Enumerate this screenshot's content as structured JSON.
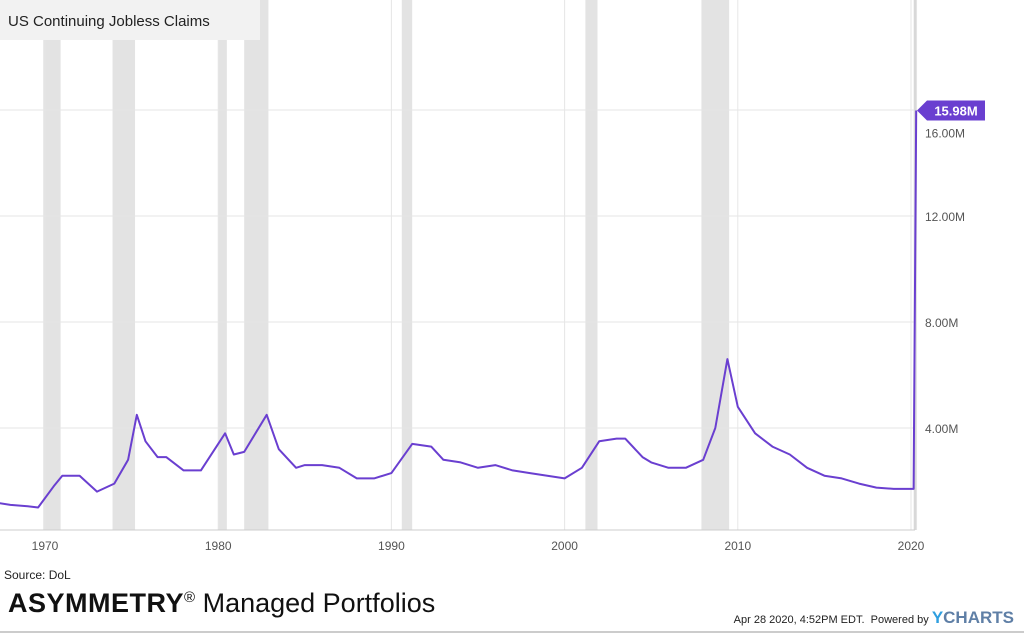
{
  "chart_data": {
    "type": "line",
    "title": "US Continuing Jobless Claims",
    "xlabel": "",
    "ylabel": "",
    "xlim": [
      1967,
      2020.5
    ],
    "ylim": [
      0,
      17.5
    ],
    "x_ticks": [
      1970,
      1980,
      1990,
      2000,
      2010,
      2020
    ],
    "x_tick_labels": [
      "1970",
      "1980",
      "1990",
      "2000",
      "2010",
      "2020"
    ],
    "y_ticks": [
      4,
      8,
      12,
      16
    ],
    "y_tick_labels": [
      "4.00M",
      "8.00M",
      "12.00M",
      "16.00M"
    ],
    "grid": true,
    "recessions": [
      [
        1969.9,
        1970.9
      ],
      [
        1973.9,
        1975.2
      ],
      [
        1980.0,
        1980.5
      ],
      [
        1981.5,
        1982.9
      ],
      [
        1990.6,
        1991.2
      ],
      [
        2001.2,
        2001.9
      ],
      [
        2007.9,
        2009.5
      ],
      [
        2020.15,
        2020.35
      ]
    ],
    "series": [
      {
        "name": "US Continuing Jobless Claims",
        "color": "#6a3fd0",
        "unit": "millions",
        "x": [
          1967,
          1968,
          1969,
          1969.6,
          1970.5,
          1971,
          1972,
          1973,
          1974,
          1974.8,
          1975.3,
          1975.8,
          1976.5,
          1977,
          1978,
          1979,
          1980.4,
          1980.9,
          1981.5,
          1982.8,
          1983.5,
          1984.5,
          1985,
          1986,
          1987,
          1988,
          1989,
          1990,
          1991.2,
          1992.3,
          1993,
          1994,
          1995,
          1996,
          1997,
          1998,
          1999,
          2000,
          2001,
          2002,
          2003,
          2003.5,
          2004.5,
          2005,
          2006,
          2007,
          2008,
          2008.7,
          2009.4,
          2010,
          2011,
          2012,
          2013,
          2014,
          2015,
          2016,
          2017,
          2018,
          2019,
          2020.15,
          2020.3
        ],
        "y": [
          1.2,
          1.1,
          1.05,
          1.0,
          1.8,
          2.2,
          2.2,
          1.6,
          1.9,
          2.8,
          4.5,
          3.5,
          2.9,
          2.9,
          2.4,
          2.4,
          3.8,
          3.0,
          3.1,
          4.5,
          3.2,
          2.5,
          2.6,
          2.6,
          2.5,
          2.1,
          2.1,
          2.3,
          3.4,
          3.3,
          2.8,
          2.7,
          2.5,
          2.6,
          2.4,
          2.3,
          2.2,
          2.1,
          2.5,
          3.5,
          3.6,
          3.6,
          2.9,
          2.7,
          2.5,
          2.5,
          2.8,
          4.0,
          6.6,
          4.8,
          3.8,
          3.3,
          3.0,
          2.5,
          2.2,
          2.1,
          1.9,
          1.75,
          1.7,
          1.7,
          15.98
        ]
      }
    ],
    "last_value_label": "15.98M"
  },
  "footer": {
    "source": "Source: DoL",
    "brand_bold": "ASYMMETRY",
    "brand_reg": "®",
    "brand_rest": " Managed Portfolios",
    "timestamp": "Apr 28 2020, 4:52PM EDT.",
    "powered_by": "Powered by",
    "ycharts_y": "Y",
    "ycharts_rest": "CHARTS"
  }
}
